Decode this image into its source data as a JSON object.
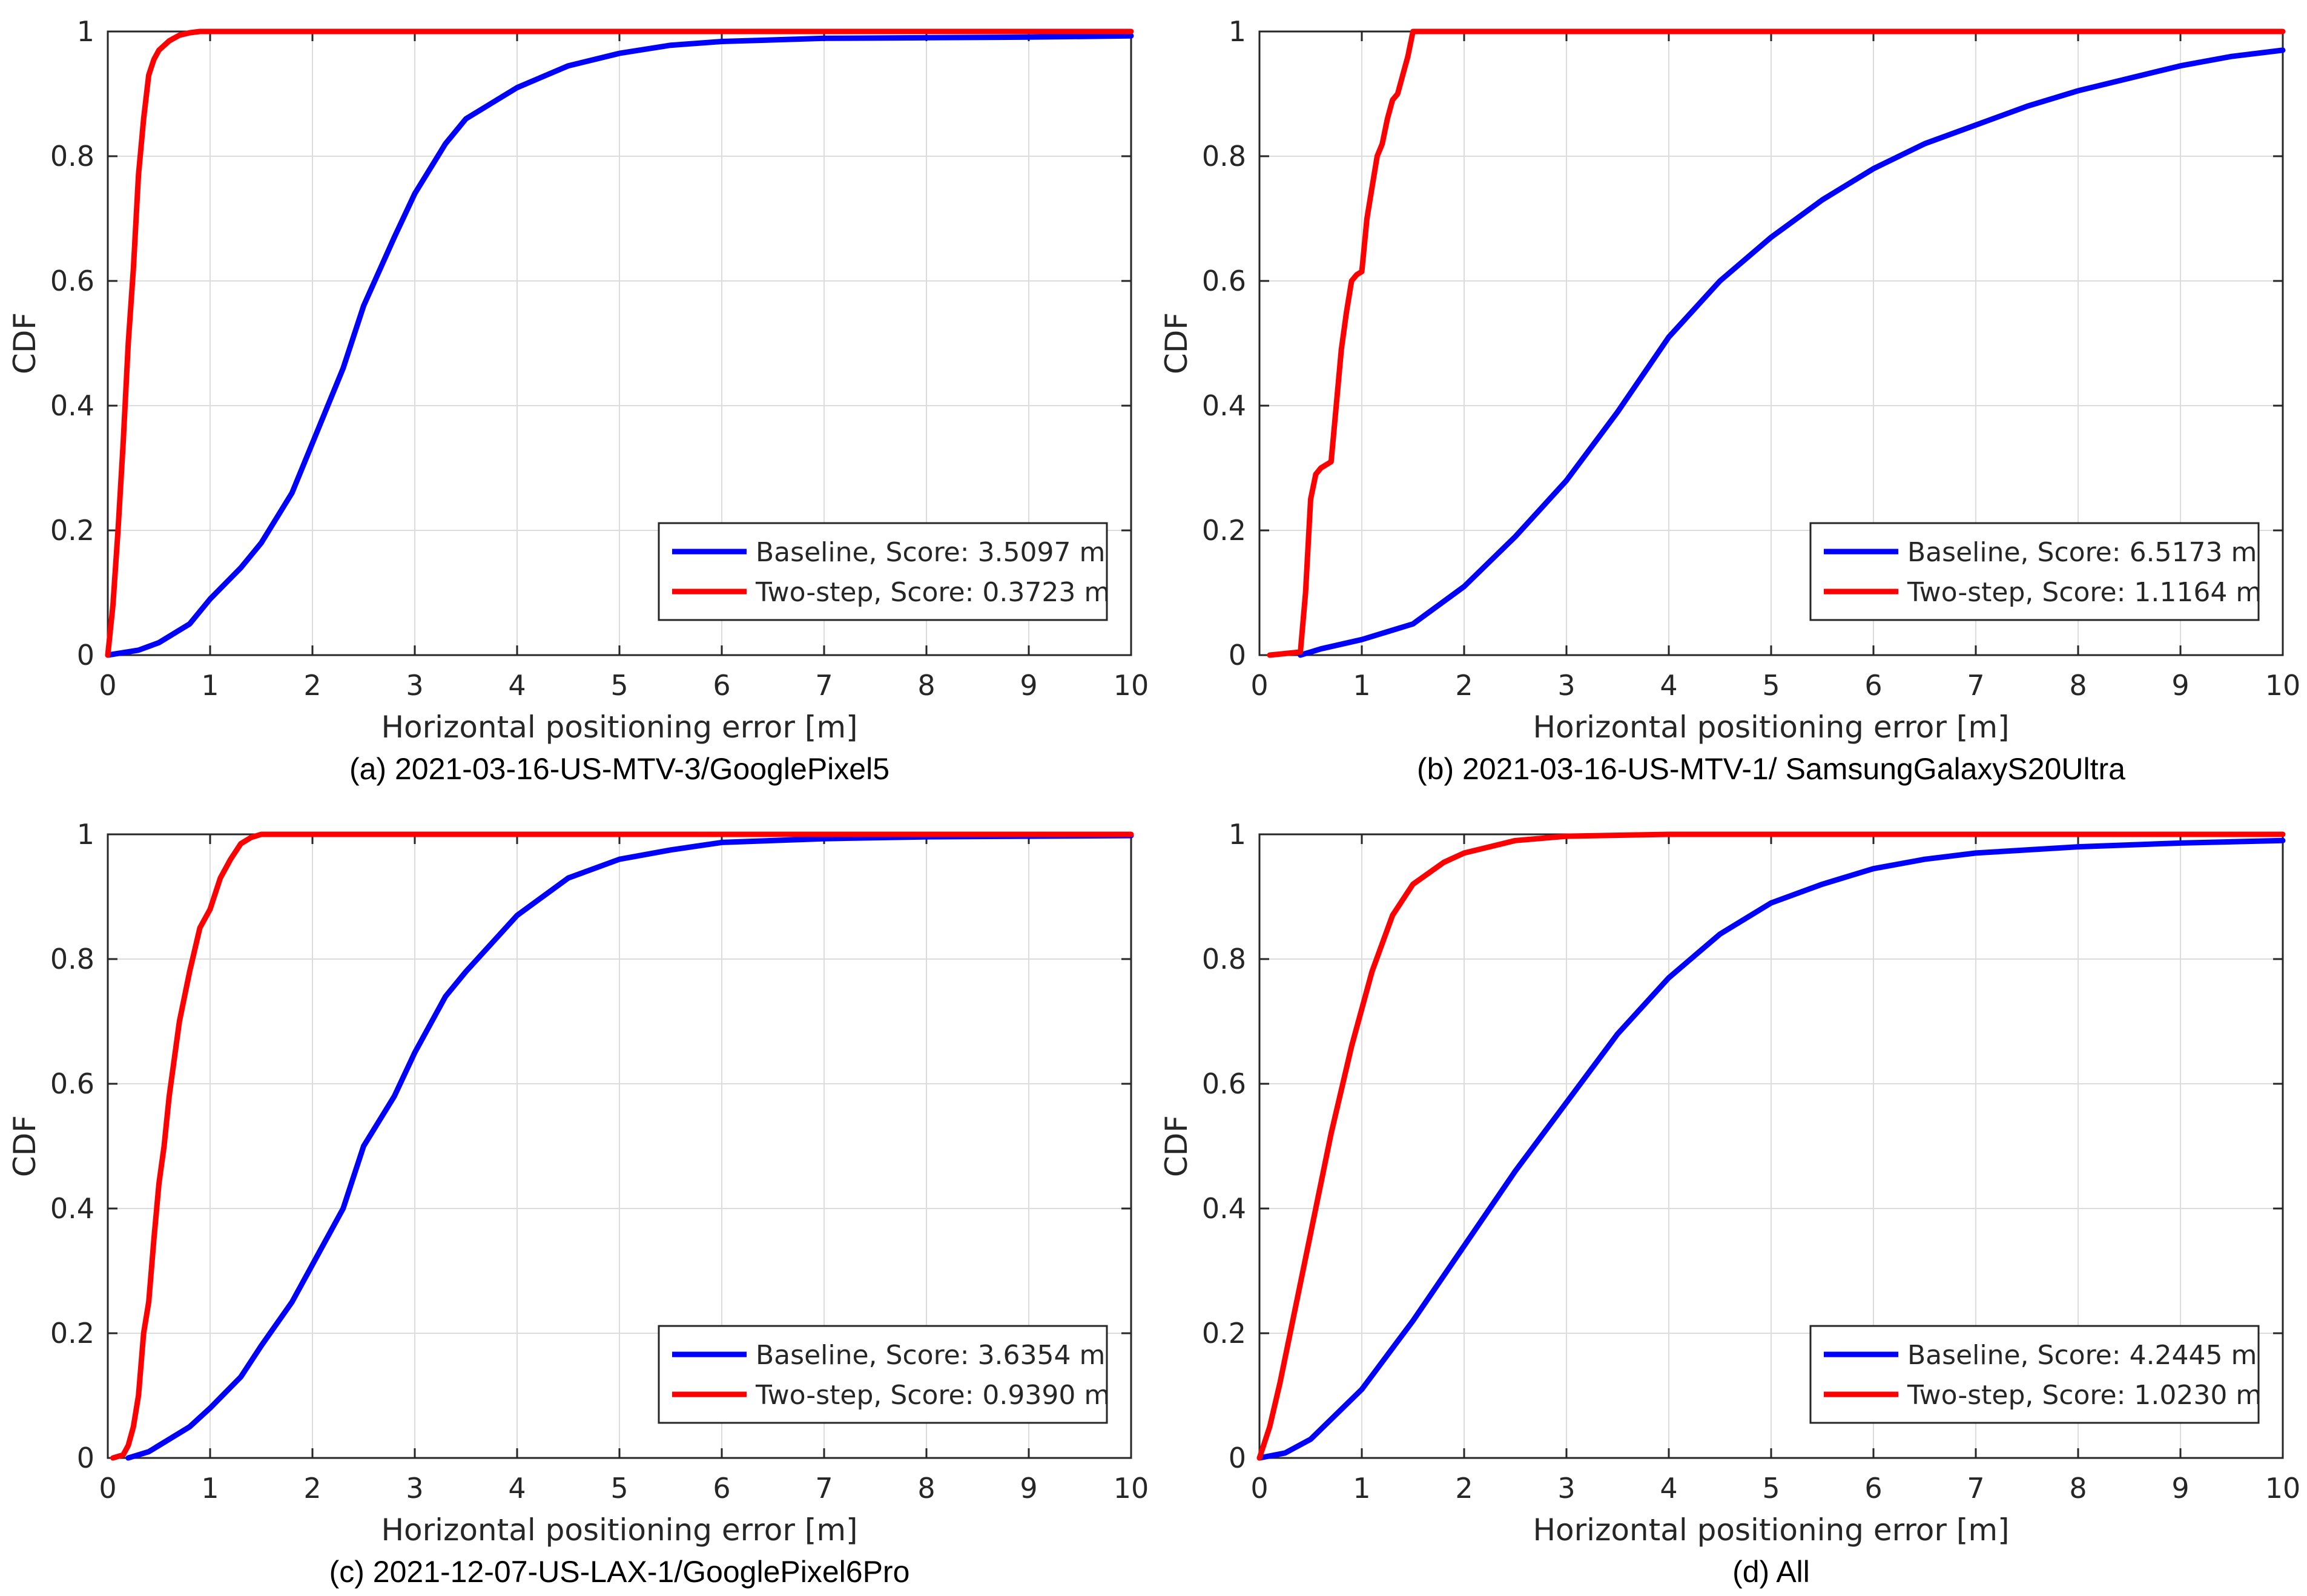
{
  "colors": {
    "baseline": "#0000ff",
    "two_step": "#ff0000",
    "axis": "#262626",
    "grid": "#dcdcdc",
    "legend_border": "#262626"
  },
  "chart_data": [
    {
      "type": "line",
      "caption": "(a) 2021-03-16-US-MTV-3/GooglePixel5",
      "xlabel": "Horizontal positioning error [m]",
      "ylabel": "CDF",
      "xlim": [
        0,
        10
      ],
      "ylim": [
        0,
        1
      ],
      "xticks": [
        0,
        1,
        2,
        3,
        4,
        5,
        6,
        7,
        8,
        9,
        10
      ],
      "yticks": [
        0,
        0.2,
        0.4,
        0.6,
        0.8,
        1
      ],
      "grid": true,
      "legend_position": "bottom-right",
      "series": [
        {
          "name": "Baseline, Score: 3.5097 m",
          "color_key": "baseline",
          "x": [
            0,
            0.3,
            0.5,
            0.8,
            1.0,
            1.3,
            1.5,
            1.8,
            2.0,
            2.3,
            2.5,
            2.8,
            3.0,
            3.3,
            3.5,
            4.0,
            4.5,
            5.0,
            5.5,
            6.0,
            7.0,
            8.0,
            9.0,
            10.0
          ],
          "y": [
            0,
            0.008,
            0.02,
            0.05,
            0.09,
            0.14,
            0.18,
            0.26,
            0.34,
            0.46,
            0.56,
            0.67,
            0.74,
            0.82,
            0.86,
            0.91,
            0.945,
            0.965,
            0.978,
            0.984,
            0.989,
            0.99,
            0.991,
            0.993
          ]
        },
        {
          "name": "Two-step, Score: 0.3723 m",
          "color_key": "two_step",
          "x": [
            0,
            0.05,
            0.1,
            0.15,
            0.2,
            0.25,
            0.3,
            0.35,
            0.4,
            0.45,
            0.5,
            0.6,
            0.7,
            0.8,
            0.9,
            1.0,
            10.0
          ],
          "y": [
            0,
            0.08,
            0.2,
            0.34,
            0.5,
            0.62,
            0.77,
            0.86,
            0.93,
            0.955,
            0.97,
            0.985,
            0.994,
            0.998,
            1.0,
            1.0,
            1.0
          ]
        }
      ]
    },
    {
      "type": "line",
      "caption": "(b)  2021-03-16-US-MTV-1/ SamsungGalaxyS20Ultra",
      "xlabel": "Horizontal positioning error [m]",
      "ylabel": "CDF",
      "xlim": [
        0,
        10
      ],
      "ylim": [
        0,
        1
      ],
      "xticks": [
        0,
        1,
        2,
        3,
        4,
        5,
        6,
        7,
        8,
        9,
        10
      ],
      "yticks": [
        0,
        0.2,
        0.4,
        0.6,
        0.8,
        1
      ],
      "grid": true,
      "legend_position": "bottom-right",
      "series": [
        {
          "name": "Baseline, Score: 6.5173 m",
          "color_key": "baseline",
          "x": [
            0.4,
            0.6,
            1.0,
            1.5,
            2.0,
            2.5,
            3.0,
            3.5,
            4.0,
            4.5,
            5.0,
            5.5,
            6.0,
            6.5,
            7.0,
            7.5,
            8.0,
            8.5,
            9.0,
            9.5,
            10.0
          ],
          "y": [
            0,
            0.01,
            0.025,
            0.05,
            0.11,
            0.19,
            0.28,
            0.39,
            0.51,
            0.6,
            0.67,
            0.73,
            0.78,
            0.82,
            0.85,
            0.88,
            0.905,
            0.925,
            0.945,
            0.96,
            0.97
          ]
        },
        {
          "name": "Two-step, Score: 1.1164 m",
          "color_key": "two_step",
          "x": [
            0.1,
            0.4,
            0.45,
            0.5,
            0.55,
            0.6,
            0.7,
            0.75,
            0.8,
            0.85,
            0.9,
            0.95,
            1.0,
            1.05,
            1.1,
            1.15,
            1.2,
            1.25,
            1.3,
            1.35,
            1.4,
            1.45,
            1.5,
            10.0
          ],
          "y": [
            0,
            0.005,
            0.1,
            0.25,
            0.29,
            0.3,
            0.31,
            0.4,
            0.49,
            0.55,
            0.6,
            0.61,
            0.615,
            0.7,
            0.75,
            0.8,
            0.82,
            0.86,
            0.89,
            0.9,
            0.93,
            0.96,
            1.0,
            1.0
          ]
        }
      ]
    },
    {
      "type": "line",
      "caption": "(c)  2021-12-07-US-LAX-1/GooglePixel6Pro",
      "xlabel": "Horizontal positioning error [m]",
      "ylabel": "CDF",
      "xlim": [
        0,
        10
      ],
      "ylim": [
        0,
        1
      ],
      "xticks": [
        0,
        1,
        2,
        3,
        4,
        5,
        6,
        7,
        8,
        9,
        10
      ],
      "yticks": [
        0,
        0.2,
        0.4,
        0.6,
        0.8,
        1
      ],
      "grid": true,
      "legend_position": "bottom-right",
      "series": [
        {
          "name": "Baseline, Score: 3.6354 m",
          "color_key": "baseline",
          "x": [
            0.2,
            0.4,
            0.6,
            0.8,
            1.0,
            1.3,
            1.5,
            1.8,
            2.0,
            2.3,
            2.5,
            2.8,
            3.0,
            3.3,
            3.5,
            4.0,
            4.5,
            5.0,
            5.5,
            6.0,
            7.0,
            8.0,
            9.0,
            10.0
          ],
          "y": [
            0,
            0.01,
            0.03,
            0.05,
            0.08,
            0.13,
            0.18,
            0.25,
            0.31,
            0.4,
            0.5,
            0.58,
            0.65,
            0.74,
            0.78,
            0.87,
            0.93,
            0.96,
            0.975,
            0.987,
            0.993,
            0.996,
            0.997,
            0.998
          ]
        },
        {
          "name": "Two-step, Score: 0.9390 m",
          "color_key": "two_step",
          "x": [
            0.05,
            0.15,
            0.2,
            0.25,
            0.3,
            0.35,
            0.4,
            0.45,
            0.5,
            0.55,
            0.6,
            0.7,
            0.8,
            0.9,
            1.0,
            1.1,
            1.2,
            1.3,
            1.4,
            1.5,
            10.0
          ],
          "y": [
            0,
            0.005,
            0.02,
            0.05,
            0.1,
            0.2,
            0.25,
            0.35,
            0.44,
            0.5,
            0.58,
            0.7,
            0.78,
            0.85,
            0.88,
            0.93,
            0.96,
            0.985,
            0.995,
            1.0,
            1.0
          ]
        }
      ]
    },
    {
      "type": "line",
      "caption": "(d) All",
      "xlabel": "Horizontal positioning error [m]",
      "ylabel": "CDF",
      "xlim": [
        0,
        10
      ],
      "ylim": [
        0,
        1
      ],
      "xticks": [
        0,
        1,
        2,
        3,
        4,
        5,
        6,
        7,
        8,
        9,
        10
      ],
      "yticks": [
        0,
        0.2,
        0.4,
        0.6,
        0.8,
        1
      ],
      "grid": true,
      "legend_position": "bottom-right",
      "series": [
        {
          "name": "Baseline, Score: 4.2445 m",
          "color_key": "baseline",
          "x": [
            0,
            0.25,
            0.5,
            0.75,
            1.0,
            1.5,
            2.0,
            2.5,
            3.0,
            3.5,
            4.0,
            4.5,
            5.0,
            5.5,
            6.0,
            6.5,
            7.0,
            8.0,
            9.0,
            10.0
          ],
          "y": [
            0,
            0.008,
            0.03,
            0.07,
            0.11,
            0.22,
            0.34,
            0.46,
            0.57,
            0.68,
            0.77,
            0.84,
            0.89,
            0.92,
            0.945,
            0.96,
            0.97,
            0.98,
            0.986,
            0.99
          ]
        },
        {
          "name": "Two-step, Score: 1.0230 m",
          "color_key": "two_step",
          "x": [
            0,
            0.1,
            0.2,
            0.3,
            0.5,
            0.7,
            0.9,
            1.1,
            1.3,
            1.5,
            1.8,
            2.0,
            2.5,
            3.0,
            4.0,
            10.0
          ],
          "y": [
            0,
            0.05,
            0.12,
            0.2,
            0.36,
            0.52,
            0.66,
            0.78,
            0.87,
            0.92,
            0.955,
            0.97,
            0.99,
            0.997,
            1.0,
            1.0
          ]
        }
      ]
    }
  ]
}
